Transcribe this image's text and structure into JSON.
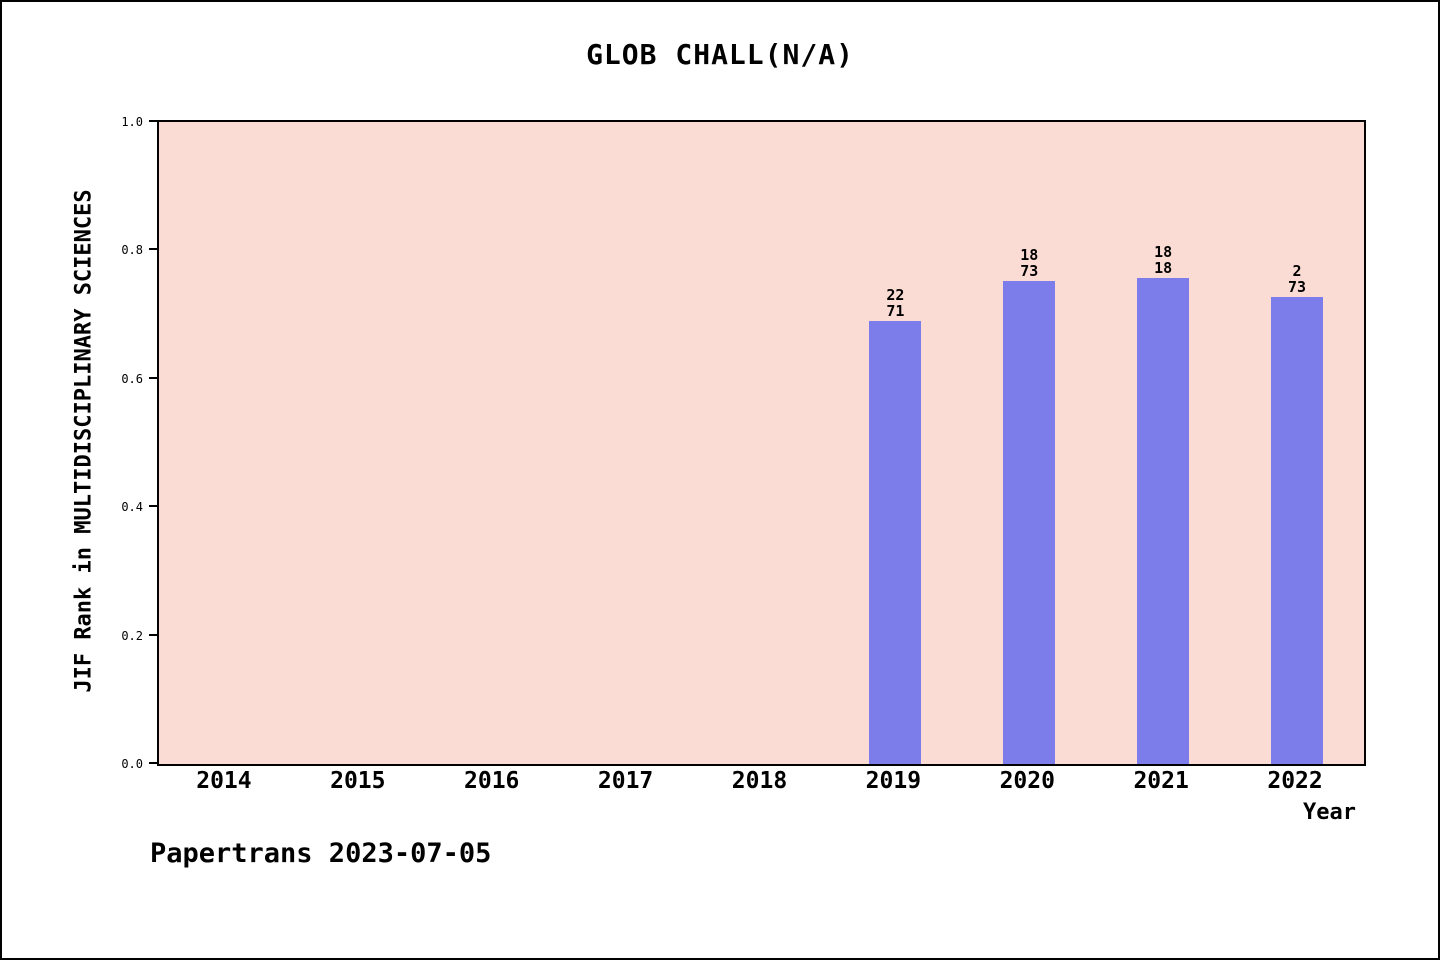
{
  "footer": "Papertrans 2023-07-05",
  "chart_data": {
    "type": "bar",
    "title": "GLOB CHALL(N/A)",
    "xlabel": "Year",
    "ylabel": "JIF Rank in MULTIDISCIPLINARY SCIENCES",
    "ylim": [
      0,
      1.0
    ],
    "ytick_step": 0.2,
    "grid": false,
    "legend": null,
    "plot_bg": "#fbdcd5",
    "bar_color": "#7d7ceb",
    "categories": [
      "2014",
      "2015",
      "2016",
      "2017",
      "2018",
      "2019",
      "2020",
      "2021",
      "2022"
    ],
    "values": [
      null,
      null,
      null,
      null,
      null,
      0.69,
      0.753,
      0.757,
      0.727
    ],
    "bar_labels": [
      null,
      null,
      null,
      null,
      null,
      [
        "22",
        "71"
      ],
      [
        "18",
        "73"
      ],
      [
        "18",
        "18"
      ],
      [
        "2",
        "73"
      ]
    ]
  }
}
